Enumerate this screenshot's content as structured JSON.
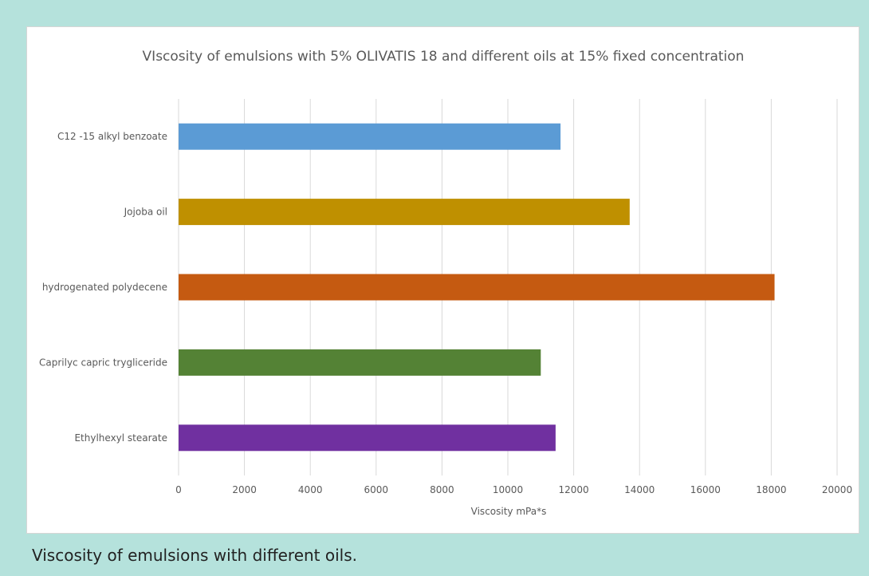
{
  "caption": "Viscosity of emulsions with different oils.",
  "chart_data": {
    "type": "bar",
    "orientation": "horizontal",
    "title": "VIscosity of emulsions with 5% OLIVATIS 18 and different oils at 15% fixed concentration",
    "xlabel": "Viscosity mPa*s",
    "ylabel": "",
    "xlim": [
      0,
      20000
    ],
    "xticks": [
      0,
      2000,
      4000,
      6000,
      8000,
      10000,
      12000,
      14000,
      16000,
      18000,
      20000
    ],
    "grid": true,
    "categories": [
      "C12 -15 alkyl benzoate",
      "Jojoba oil",
      "hydrogenated polydecene",
      "Caprilyc capric trygliceride",
      "Ethylhexyl stearate"
    ],
    "values": [
      11600,
      13700,
      18100,
      11000,
      11450
    ],
    "colors": [
      "#5b9bd5",
      "#bf9000",
      "#c55a11",
      "#548235",
      "#7030a0"
    ]
  }
}
